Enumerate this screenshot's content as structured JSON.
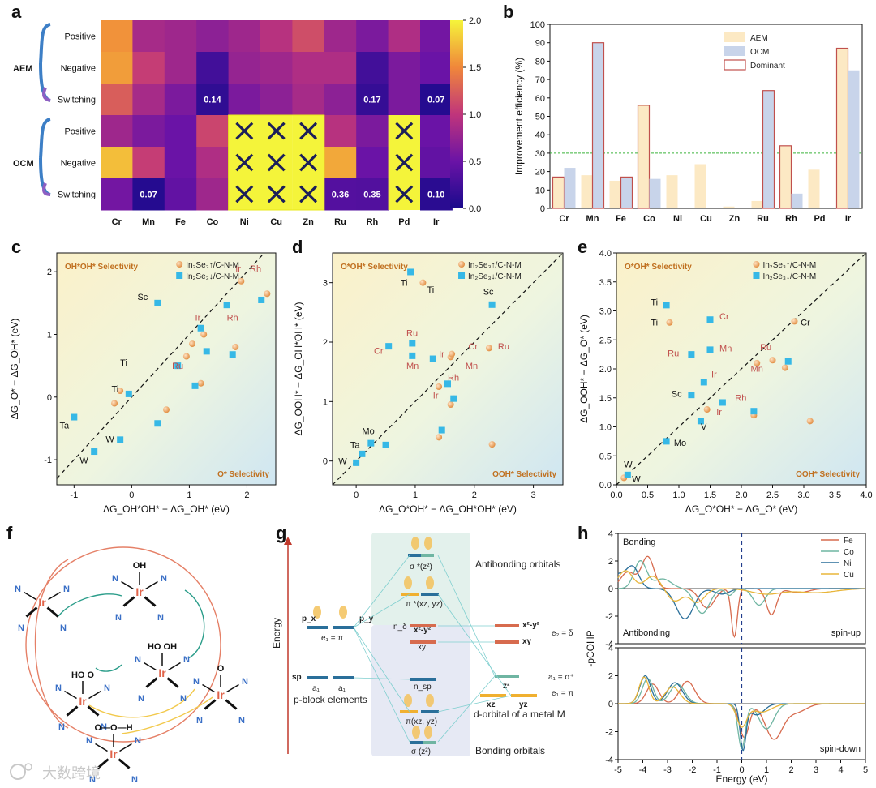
{
  "panel_labels": [
    "a",
    "b",
    "c",
    "d",
    "e",
    "f",
    "g",
    "h"
  ],
  "chart_data": [
    {
      "panel": "a",
      "type": "heatmap",
      "columns": [
        "Cr",
        "Mn",
        "Fe",
        "Co",
        "Ni",
        "Cu",
        "Zn",
        "Ru",
        "Rh",
        "Pd",
        "Ir"
      ],
      "rows": [
        "Positive",
        "Negative",
        "Switching",
        "Positive",
        "Negative",
        "Switching"
      ],
      "groups": [
        {
          "name": "AEM",
          "rows": [
            0,
            1,
            2
          ]
        },
        {
          "name": "OCM",
          "rows": [
            3,
            4,
            5
          ]
        }
      ],
      "values": [
        [
          1.55,
          0.85,
          0.8,
          0.7,
          0.8,
          0.95,
          1.15,
          0.8,
          0.6,
          0.9,
          0.55
        ],
        [
          1.6,
          1.05,
          0.8,
          0.25,
          0.75,
          0.8,
          0.9,
          0.9,
          0.25,
          0.6,
          0.5
        ],
        [
          1.25,
          0.85,
          0.6,
          0.14,
          0.6,
          0.7,
          0.85,
          0.7,
          0.17,
          0.6,
          0.07
        ],
        [
          0.8,
          0.6,
          0.5,
          1.1,
          null,
          null,
          null,
          0.95,
          0.6,
          null,
          0.5
        ],
        [
          1.75,
          1.05,
          0.5,
          0.9,
          null,
          null,
          null,
          1.65,
          0.5,
          null,
          0.45
        ],
        [
          0.55,
          0.07,
          0.45,
          0.8,
          null,
          null,
          null,
          0.36,
          0.35,
          null,
          0.1
        ]
      ],
      "cell_labels": [
        {
          "r": 2,
          "c": 3,
          "text": "0.14"
        },
        {
          "r": 2,
          "c": 8,
          "text": "0.17"
        },
        {
          "r": 2,
          "c": 10,
          "text": "0.07"
        },
        {
          "r": 5,
          "c": 1,
          "text": "0.07"
        },
        {
          "r": 5,
          "c": 7,
          "text": "0.36"
        },
        {
          "r": 5,
          "c": 8,
          "text": "0.35"
        },
        {
          "r": 5,
          "c": 10,
          "text": "0.10"
        }
      ],
      "colorbar": {
        "range": [
          0,
          2.0
        ],
        "ticks": [
          "0.0",
          "0.5",
          "1.0",
          "1.5",
          "2.0"
        ]
      }
    },
    {
      "panel": "b",
      "type": "bar",
      "categories": [
        "Cr",
        "Mn",
        "Fe",
        "Co",
        "Ni",
        "Cu",
        "Zn",
        "Ru",
        "Rh",
        "Pd",
        "Ir"
      ],
      "ylabel": "Improvement efficiency (%)",
      "ylim": [
        0,
        100
      ],
      "yticks": [
        "0",
        "10",
        "20",
        "30",
        "40",
        "50",
        "60",
        "70",
        "80",
        "90",
        "100"
      ],
      "series": [
        {
          "name": "AEM",
          "values": [
            17,
            18,
            15,
            56,
            18,
            24,
            1,
            4,
            34,
            21,
            87
          ],
          "color": "#fce9c4"
        },
        {
          "name": "OCM",
          "values": [
            22,
            90,
            17,
            16,
            0,
            0,
            0,
            64,
            8,
            0,
            75
          ],
          "color": "#c8d4ea"
        }
      ],
      "dominant": [
        "AEM",
        "OCM",
        "OCM",
        "AEM",
        null,
        null,
        null,
        "OCM",
        "AEM",
        null,
        "AEM"
      ],
      "dominant_label": "Dominant",
      "threshold": 30
    },
    {
      "panel": "c",
      "type": "scatter",
      "xlabel": "ΔG_OH*OH* − ΔG_OH* (eV)",
      "ylabel": "ΔG_O* − ΔG_OH* (eV)",
      "xlim": [
        -1.3,
        2.5
      ],
      "ylim": [
        -1.4,
        2.3
      ],
      "xticks": [
        -1,
        0,
        1,
        2
      ],
      "yticks": [
        -1,
        0,
        1,
        2
      ],
      "upper_text": "OH*OH* Selectivity",
      "lower_text": "O* Selectivity",
      "series": [
        {
          "name": "In₂Se₃↑/C-N-M",
          "marker": "circle",
          "points": [
            [
              -0.3,
              -0.1
            ],
            [
              -0.2,
              0.1
            ],
            [
              0.6,
              -0.2
            ],
            [
              0.95,
              0.65
            ],
            [
              1.05,
              0.85
            ],
            [
              1.25,
              1.0
            ],
            [
              1.2,
              0.22
            ],
            [
              1.9,
              1.85
            ],
            [
              2.35,
              1.65
            ],
            [
              1.8,
              0.8
            ]
          ]
        },
        {
          "name": "In₂Se₃↓/C-N-M",
          "marker": "square",
          "points": [
            [
              -1.0,
              -0.32
            ],
            [
              -0.65,
              -0.87
            ],
            [
              -0.2,
              -0.68
            ],
            [
              -0.05,
              0.05
            ],
            [
              0.45,
              1.5
            ],
            [
              0.45,
              -0.42
            ],
            [
              0.8,
              0.5
            ],
            [
              1.1,
              0.18
            ],
            [
              1.2,
              1.1
            ],
            [
              1.3,
              0.73
            ],
            [
              1.65,
              1.47
            ],
            [
              1.75,
              0.68
            ],
            [
              2.25,
              1.55
            ]
          ]
        }
      ],
      "point_labels": [
        {
          "t": "Ir",
          "x": 1.8,
          "y": 2.0,
          "c": "red"
        },
        {
          "t": "Rh",
          "x": 2.05,
          "y": 2.0,
          "c": "red"
        },
        {
          "t": "Sc",
          "x": 0.1,
          "y": 1.55,
          "c": "black"
        },
        {
          "t": "Ir",
          "x": 1.1,
          "y": 1.22,
          "c": "red"
        },
        {
          "t": "Rh",
          "x": 1.65,
          "y": 1.22,
          "c": "red"
        },
        {
          "t": "Ru",
          "x": 0.7,
          "y": 0.45,
          "c": "red"
        },
        {
          "t": "Ti",
          "x": -0.2,
          "y": 0.5,
          "c": "black"
        },
        {
          "t": "Ti",
          "x": -0.35,
          "y": 0.08,
          "c": "black"
        },
        {
          "t": "Ta",
          "x": -1.25,
          "y": -0.5,
          "c": "black"
        },
        {
          "t": "W",
          "x": -0.45,
          "y": -0.72,
          "c": "black"
        },
        {
          "t": "W",
          "x": -0.9,
          "y": -1.06,
          "c": "black"
        }
      ]
    },
    {
      "panel": "d",
      "type": "scatter",
      "xlabel": "ΔG_O*OH* − ΔG_OH*OH* (eV)",
      "ylabel": "ΔG_OOH* − ΔG_OH*OH* (eV)",
      "xlim": [
        -0.4,
        3.5
      ],
      "ylim": [
        -0.4,
        3.5
      ],
      "xticks": [
        0,
        1,
        2,
        3
      ],
      "yticks": [
        0,
        1,
        2,
        3
      ],
      "upper_text": "O*OH* Selectivity",
      "lower_text": "OOH* Selectivity",
      "series": [
        {
          "name": "In₂Se₃↑/C-N-M",
          "marker": "circle",
          "points": [
            [
              1.13,
              3.0
            ],
            [
              1.4,
              1.25
            ],
            [
              1.6,
              1.75
            ],
            [
              1.62,
              1.8
            ],
            [
              1.65,
              1.05
            ],
            [
              1.6,
              0.95
            ],
            [
              2.25,
              1.9
            ],
            [
              2.3,
              0.28
            ],
            [
              1.4,
              0.4
            ]
          ]
        },
        {
          "name": "In₂Se₃↓/C-N-M",
          "marker": "square",
          "points": [
            [
              0.92,
              3.18
            ],
            [
              0.55,
              1.93
            ],
            [
              0.95,
              1.77
            ],
            [
              0.95,
              1.98
            ],
            [
              1.3,
              1.72
            ],
            [
              1.55,
              1.3
            ],
            [
              1.65,
              1.05
            ],
            [
              1.45,
              0.52
            ],
            [
              2.3,
              2.63
            ],
            [
              0.1,
              0.12
            ],
            [
              0.25,
              0.3
            ],
            [
              0.5,
              0.27
            ],
            [
              0.0,
              -0.03
            ]
          ]
        }
      ],
      "point_labels": [
        {
          "t": "Ti",
          "x": 0.75,
          "y": 2.95,
          "c": "black"
        },
        {
          "t": "Ti",
          "x": 1.2,
          "y": 2.83,
          "c": "black"
        },
        {
          "t": "Sc",
          "x": 2.15,
          "y": 2.8,
          "c": "black"
        },
        {
          "t": "Ru",
          "x": 0.85,
          "y": 2.1,
          "c": "red"
        },
        {
          "t": "Cr",
          "x": 0.3,
          "y": 1.8,
          "c": "red"
        },
        {
          "t": "Ir",
          "x": 1.4,
          "y": 1.75,
          "c": "red"
        },
        {
          "t": "Mn",
          "x": 0.85,
          "y": 1.55,
          "c": "red"
        },
        {
          "t": "Cr",
          "x": 1.9,
          "y": 1.88,
          "c": "red"
        },
        {
          "t": "Ru",
          "x": 2.4,
          "y": 1.88,
          "c": "red"
        },
        {
          "t": "Mn",
          "x": 1.85,
          "y": 1.55,
          "c": "red"
        },
        {
          "t": "Rh",
          "x": 1.55,
          "y": 1.35,
          "c": "red"
        },
        {
          "t": "Ir",
          "x": 1.3,
          "y": 1.05,
          "c": "red"
        },
        {
          "t": "Mo",
          "x": 0.1,
          "y": 0.45,
          "c": "black"
        },
        {
          "t": "Ta",
          "x": -0.1,
          "y": 0.22,
          "c": "black"
        },
        {
          "t": "W",
          "x": -0.3,
          "y": -0.05,
          "c": "black"
        }
      ]
    },
    {
      "panel": "e",
      "type": "scatter",
      "xlabel": "ΔG_O*OH* − ΔG_O* (eV)",
      "ylabel": "ΔG_OOH* − ΔG_O* (eV)",
      "xlim": [
        0.0,
        4.0
      ],
      "ylim": [
        0.0,
        4.0
      ],
      "xticks": [
        "0.0",
        "0.5",
        "1.0",
        "1.5",
        "2.0",
        "2.5",
        "3.0",
        "3.5",
        "4.0"
      ],
      "yticks": [
        "0.0",
        "0.5",
        "1.0",
        "1.5",
        "2.0",
        "2.5",
        "3.0",
        "3.5",
        "4.0"
      ],
      "upper_text": "O*OH* Selectivity",
      "lower_text": "OOH* Selectivity",
      "series": [
        {
          "name": "In₂Se₃↑/C-N-M",
          "marker": "circle",
          "points": [
            [
              0.85,
              2.8
            ],
            [
              2.85,
              2.82
            ],
            [
              2.25,
              2.1
            ],
            [
              2.5,
              2.15
            ],
            [
              2.7,
              2.02
            ],
            [
              2.2,
              1.2
            ],
            [
              1.45,
              1.3
            ],
            [
              3.1,
              1.1
            ],
            [
              0.12,
              0.12
            ]
          ]
        },
        {
          "name": "In₂Se₃↓/C-N-M",
          "marker": "square",
          "points": [
            [
              0.8,
              3.1
            ],
            [
              1.5,
              2.85
            ],
            [
              1.2,
              2.25
            ],
            [
              1.5,
              2.33
            ],
            [
              2.75,
              2.13
            ],
            [
              1.4,
              1.77
            ],
            [
              1.2,
              1.55
            ],
            [
              1.7,
              1.42
            ],
            [
              2.2,
              1.27
            ],
            [
              1.35,
              1.1
            ],
            [
              0.8,
              0.75
            ],
            [
              0.18,
              0.17
            ]
          ]
        }
      ],
      "point_labels": [
        {
          "t": "Ti",
          "x": 0.55,
          "y": 3.1,
          "c": "black"
        },
        {
          "t": "Cr",
          "x": 1.65,
          "y": 2.85,
          "c": "red"
        },
        {
          "t": "Ti",
          "x": 0.55,
          "y": 2.75,
          "c": "black"
        },
        {
          "t": "Cr",
          "x": 2.95,
          "y": 2.75,
          "c": "black"
        },
        {
          "t": "Ru",
          "x": 0.82,
          "y": 2.22,
          "c": "red"
        },
        {
          "t": "Mn",
          "x": 1.65,
          "y": 2.3,
          "c": "red"
        },
        {
          "t": "Ru",
          "x": 2.3,
          "y": 2.32,
          "c": "red"
        },
        {
          "t": "Mn",
          "x": 2.15,
          "y": 1.95,
          "c": "red"
        },
        {
          "t": "Ir",
          "x": 1.52,
          "y": 1.85,
          "c": "red"
        },
        {
          "t": "Sc",
          "x": 0.88,
          "y": 1.52,
          "c": "black"
        },
        {
          "t": "Rh",
          "x": 1.9,
          "y": 1.45,
          "c": "red"
        },
        {
          "t": "Ir",
          "x": 1.6,
          "y": 1.2,
          "c": "red"
        },
        {
          "t": "V",
          "x": 1.35,
          "y": 0.95,
          "c": "black"
        },
        {
          "t": "Mo",
          "x": 0.92,
          "y": 0.67,
          "c": "black"
        },
        {
          "t": "W",
          "x": 0.12,
          "y": 0.3,
          "c": "black"
        },
        {
          "t": "W",
          "x": 0.25,
          "y": 0.05,
          "c": "black"
        }
      ]
    },
    {
      "panel": "h",
      "type": "line",
      "xlabel": "Energy (eV)",
      "ylabel": "-pCOHP",
      "xlim": [
        -5,
        5
      ],
      "xticks": [
        "-5",
        "-4",
        "-3",
        "-2",
        "-1",
        "0",
        "1",
        "2",
        "3",
        "4",
        "5"
      ],
      "subplots": [
        {
          "name": "spin-up",
          "top_text": "Bonding",
          "bottom_text": "Antibonding",
          "ylim": [
            -4,
            4
          ],
          "yticks": [
            "-4",
            "-2",
            "0",
            "2",
            "4"
          ]
        },
        {
          "name": "spin-down",
          "ylim": [
            -4,
            4
          ],
          "yticks": [
            "-4",
            "-2",
            "0",
            "2",
            "4"
          ]
        }
      ],
      "series": [
        {
          "name": "Fe",
          "color": "#d76b4e"
        },
        {
          "name": "Co",
          "color": "#6fb5a2"
        },
        {
          "name": "Ni",
          "color": "#2a6f9a"
        },
        {
          "name": "Cu",
          "color": "#e8b53a"
        }
      ]
    }
  ],
  "panel_a_text": {
    "group_aem": "AEM",
    "group_ocm": "OCM"
  },
  "panel_b_text": {
    "legend": [
      "AEM",
      "OCM",
      "Dominant"
    ]
  },
  "panel_f": {
    "molecules": [
      "OH",
      "HO OH",
      "HO O",
      "O",
      "O—O—H"
    ],
    "metal": "Ir",
    "ligand": "N"
  },
  "panel_g": {
    "energy_label": "Energy",
    "antibonding": "Antibonding orbitals",
    "bonding": "Bonding orbitals",
    "p_block": "p-block elements",
    "metal": "d-orbital of a metal M",
    "labels": [
      "σ *(z²)",
      "π *(xz, yz)",
      "x²-y²",
      "xy",
      "n_sp",
      "π(xz, yz)",
      "σ (z²)",
      "p_x",
      "p_y",
      "sp",
      "e₁ = π",
      "a₁",
      "a₁",
      "x²-y²",
      "xy",
      "z²",
      "xz",
      "yz",
      "e₂ = δ",
      "a₁ = σ⁺",
      "e₁ = π",
      "n_δ"
    ]
  },
  "watermark": "大数跨境"
}
